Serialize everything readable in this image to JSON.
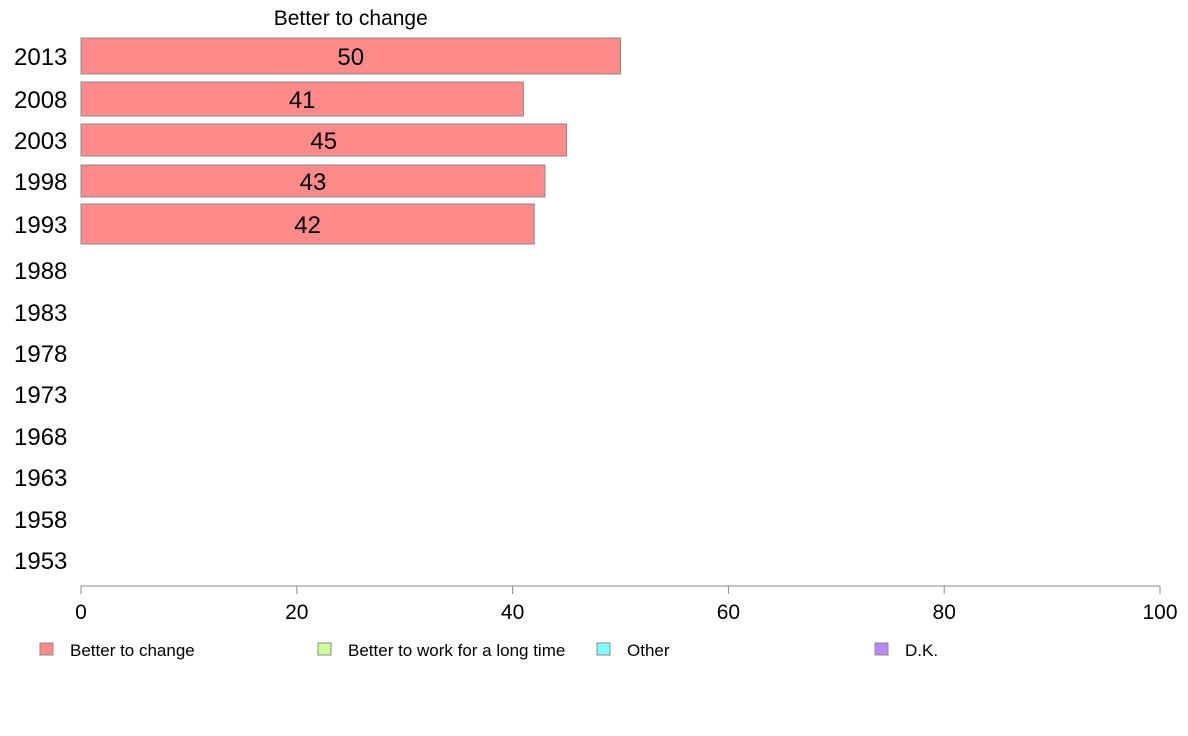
{
  "chart_data": {
    "type": "bar",
    "orientation": "horizontal",
    "categories": [
      "2013",
      "2008",
      "2003",
      "1998",
      "1993",
      "1988",
      "1983",
      "1978",
      "1973",
      "1968",
      "1963",
      "1958",
      "1953"
    ],
    "series": [
      {
        "name": "Better to change",
        "values": [
          50,
          41,
          45,
          43,
          42,
          null,
          null,
          null,
          null,
          null,
          null,
          null,
          null
        ],
        "color": "#ff8a8a"
      },
      {
        "name": "Better to work for a long time",
        "values": [
          null,
          null,
          null,
          null,
          null,
          null,
          null,
          null,
          null,
          null,
          null,
          null,
          null
        ],
        "color": "#ccff99"
      },
      {
        "name": "Other",
        "values": [
          null,
          null,
          null,
          null,
          null,
          null,
          null,
          null,
          null,
          null,
          null,
          null,
          null
        ],
        "color": "#80ffff"
      },
      {
        "name": "D.K.",
        "values": [
          null,
          null,
          null,
          null,
          null,
          null,
          null,
          null,
          null,
          null,
          null,
          null,
          null
        ],
        "color": "#bb88ff"
      }
    ],
    "series_title": "Better to change",
    "xlim": [
      0,
      100
    ],
    "xticks": [
      0,
      20,
      40,
      60,
      80,
      100
    ],
    "grid": false,
    "legend_position": "bottom"
  }
}
